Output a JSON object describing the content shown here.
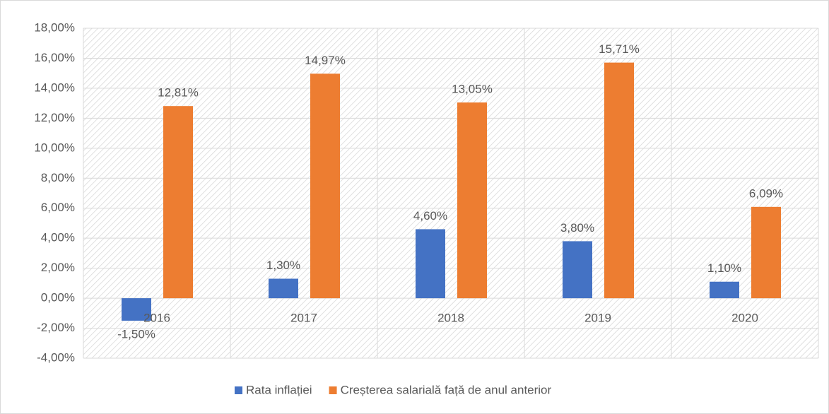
{
  "chart_data": {
    "type": "bar",
    "categories": [
      "2016",
      "2017",
      "2018",
      "2019",
      "2020"
    ],
    "series": [
      {
        "name": "Rata inflației",
        "color": "#4472c4",
        "values": [
          -1.5,
          1.3,
          4.6,
          3.8,
          1.1
        ],
        "value_labels": [
          "-1,50%",
          "1,30%",
          "4,60%",
          "3,80%",
          "1,10%"
        ]
      },
      {
        "name": "Creșterea salarială față de anul anterior",
        "color": "#ed7d31",
        "values": [
          12.81,
          14.97,
          13.05,
          15.71,
          6.09
        ],
        "value_labels": [
          "12,81%",
          "14,97%",
          "13,05%",
          "15,71%",
          "6,09%"
        ]
      }
    ],
    "ylim": [
      -4,
      18
    ],
    "yticks": [
      {
        "value": -4,
        "label": "-4,00%"
      },
      {
        "value": -2,
        "label": "-2,00%"
      },
      {
        "value": 0,
        "label": "0,00%"
      },
      {
        "value": 2,
        "label": "2,00%"
      },
      {
        "value": 4,
        "label": "4,00%"
      },
      {
        "value": 6,
        "label": "6,00%"
      },
      {
        "value": 8,
        "label": "8,00%"
      },
      {
        "value": 10,
        "label": "10,00%"
      },
      {
        "value": 12,
        "label": "12,00%"
      },
      {
        "value": 14,
        "label": "14,00%"
      },
      {
        "value": 16,
        "label": "16,00%"
      },
      {
        "value": 18,
        "label": "18,00%"
      }
    ],
    "grid": true,
    "legend": "bottom"
  }
}
